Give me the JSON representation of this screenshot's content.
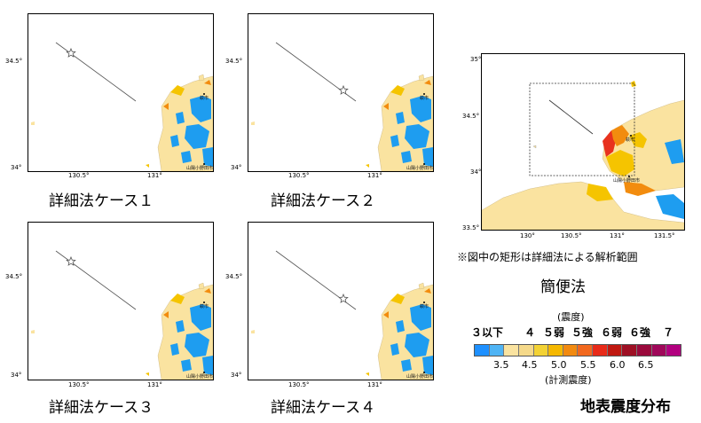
{
  "panels": [
    {
      "caption": "詳細法ケース１",
      "star": "w",
      "y_ticks": [
        "34.5°",
        "34°"
      ],
      "x_ticks": [
        "130.5°",
        "131°"
      ],
      "labels": [
        "萩市",
        "山陽小野田市"
      ]
    },
    {
      "caption": "詳細法ケース２",
      "star": "e",
      "y_ticks": [
        "34.5°",
        "34°"
      ],
      "x_ticks": [
        "130.5°",
        "131°"
      ],
      "labels": [
        "萩市",
        "山陽小野田市"
      ]
    },
    {
      "caption": "詳細法ケース３",
      "star": "w",
      "y_ticks": [
        "34.5°",
        "34°"
      ],
      "x_ticks": [
        "130.5°",
        "131°"
      ],
      "labels": [
        "萩市",
        "山陽小野田市"
      ]
    },
    {
      "caption": "詳細法ケース４",
      "star": "e",
      "y_ticks": [
        "34.5°",
        "34°"
      ],
      "x_ticks": [
        "130.5°",
        "131°"
      ],
      "labels": [
        "萩市",
        "山陽小野田市"
      ]
    }
  ],
  "simple_map": {
    "y_ticks": [
      "35°",
      "34.5°",
      "34°",
      "33.5°"
    ],
    "x_ticks": [
      "130°",
      "130.5°",
      "131°",
      "131.5°"
    ],
    "labels": [
      "萩市",
      "山陽小野田市"
    ],
    "note": "※図中の矩形は詳細法による解析範囲",
    "caption": "簡便法"
  },
  "legend": {
    "title_top": "(震度)",
    "classes": [
      "３以下",
      "４",
      "５弱",
      "５強",
      "６弱",
      "６強",
      "７"
    ],
    "values": [
      "3.5",
      "4.5",
      "5.0",
      "5.5",
      "6.0",
      "6.5"
    ],
    "title_bottom": "(計測震度)",
    "colors": [
      "#1e90ff",
      "#4fb4f5",
      "#fae3a0",
      "#f5d98a",
      "#f3d234",
      "#f5b800",
      "#f28a10",
      "#f2681e",
      "#e82a18",
      "#c01810",
      "#9e1024",
      "#9a0a3c",
      "#a0085a",
      "#b2007f"
    ]
  },
  "main_title": "地表震度分布",
  "colors": {
    "sea": "#ffffff",
    "land_low": "#fae3a0",
    "int3": "#1e9df0",
    "int5l": "#f5c400",
    "int5u": "#f28c0e",
    "int6l": "#e8321e"
  }
}
